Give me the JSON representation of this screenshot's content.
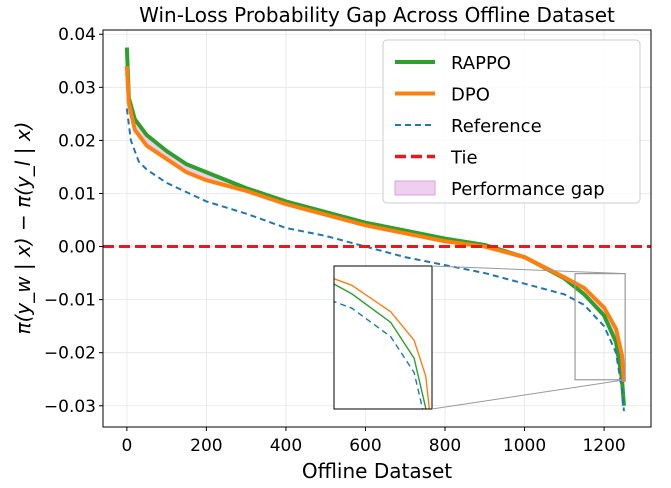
{
  "chart_data": {
    "type": "line",
    "title": "Win-Loss Probability Gap Across Offline Dataset",
    "xlabel": "Offline Dataset",
    "ylabel": "π(y_w | x) − π(y_l | x)",
    "xlim": [
      -60,
      1318
    ],
    "ylim": [
      -0.034,
      0.0408
    ],
    "xticks": [
      0,
      200,
      400,
      600,
      800,
      1000,
      1200
    ],
    "xtick_labels": [
      "0",
      "200",
      "400",
      "600",
      "800",
      "1000",
      "1200"
    ],
    "yticks": [
      0.04,
      0.03,
      0.02,
      0.01,
      0.0,
      -0.01,
      -0.02,
      -0.03
    ],
    "ytick_labels": [
      "0.04",
      "0.03",
      "0.02",
      "0.01",
      "0.00",
      "−0.01",
      "−0.02",
      "−0.03"
    ],
    "grid": true,
    "legend_position": "top-right",
    "series": [
      {
        "name": "RAPPO",
        "color": "#2ca02c",
        "style": "solid",
        "x": [
          0,
          5,
          20,
          50,
          100,
          150,
          200,
          300,
          400,
          500,
          600,
          700,
          800,
          900,
          1000,
          1100,
          1150,
          1200,
          1230,
          1245,
          1250
        ],
        "y": [
          0.0375,
          0.028,
          0.024,
          0.021,
          0.018,
          0.0155,
          0.014,
          0.011,
          0.0085,
          0.0065,
          0.0045,
          0.003,
          0.0015,
          0.0003,
          -0.002,
          -0.006,
          -0.009,
          -0.013,
          -0.018,
          -0.025,
          -0.03
        ]
      },
      {
        "name": "DPO",
        "color": "#ff7f0e",
        "style": "solid",
        "x": [
          0,
          5,
          20,
          50,
          100,
          150,
          200,
          300,
          400,
          500,
          600,
          700,
          800,
          900,
          1000,
          1100,
          1150,
          1200,
          1230,
          1245,
          1250
        ],
        "y": [
          0.034,
          0.027,
          0.022,
          0.019,
          0.0165,
          0.014,
          0.0125,
          0.0105,
          0.008,
          0.006,
          0.004,
          0.0025,
          0.001,
          0.0,
          -0.002,
          -0.0058,
          -0.0078,
          -0.0115,
          -0.0155,
          -0.0205,
          -0.0255
        ]
      },
      {
        "name": "Reference",
        "color": "#1f77b4",
        "style": "dashed",
        "x": [
          0,
          10,
          30,
          50,
          100,
          200,
          300,
          400,
          500,
          600,
          700,
          800,
          900,
          1000,
          1100,
          1150,
          1200,
          1230,
          1245,
          1250
        ],
        "y": [
          0.026,
          0.02,
          0.016,
          0.0145,
          0.012,
          0.0085,
          0.0062,
          0.0035,
          0.002,
          0.0,
          -0.002,
          -0.0035,
          -0.005,
          -0.007,
          -0.009,
          -0.011,
          -0.015,
          -0.02,
          -0.027,
          -0.031
        ]
      },
      {
        "name": "Tie",
        "color": "#e8191b",
        "style": "dashed",
        "y_const": 0.0
      }
    ],
    "fill_between": {
      "name": "Performance gap",
      "between": [
        "RAPPO",
        "DPO"
      ],
      "color": "#dda0dd"
    },
    "inset": {
      "xlim": [
        1127,
        1253
      ],
      "ylim": [
        -0.0251,
        -0.0051
      ]
    }
  }
}
